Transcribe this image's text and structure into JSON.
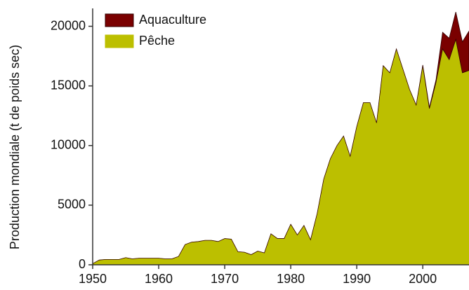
{
  "chart_data": {
    "type": "stacked_area",
    "y_label": "Production mondiale (t de poids sec)",
    "x": [
      1950,
      1951,
      1952,
      1953,
      1954,
      1955,
      1956,
      1957,
      1958,
      1959,
      1960,
      1961,
      1962,
      1963,
      1964,
      1965,
      1966,
      1967,
      1968,
      1969,
      1970,
      1971,
      1972,
      1973,
      1974,
      1975,
      1976,
      1977,
      1978,
      1979,
      1980,
      1981,
      1982,
      1983,
      1984,
      1985,
      1986,
      1987,
      1988,
      1989,
      1990,
      1991,
      1992,
      1993,
      1994,
      1995,
      1996,
      1997,
      1998,
      1999,
      2000,
      2001,
      2002,
      2003,
      2004,
      2005,
      2006,
      2007
    ],
    "series": [
      {
        "name": "Pêche",
        "color": "#bcbf00",
        "values": [
          100,
          400,
          450,
          450,
          450,
          600,
          500,
          550,
          550,
          550,
          550,
          500,
          500,
          700,
          1700,
          1900,
          1950,
          2050,
          2050,
          1950,
          2200,
          2150,
          1100,
          1050,
          850,
          1150,
          1000,
          2600,
          2200,
          2200,
          3400,
          2500,
          3300,
          2100,
          4300,
          7200,
          8900,
          10000,
          10800,
          9100,
          11600,
          13600,
          13600,
          11900,
          16700,
          16100,
          18100,
          16400,
          14700,
          13400,
          16700,
          13100,
          15300,
          18100,
          17200,
          18900,
          16100,
          16300
        ]
      },
      {
        "name": "Aquaculture",
        "color": "#7a0000",
        "values": [
          0,
          0,
          0,
          0,
          0,
          0,
          0,
          0,
          0,
          0,
          0,
          0,
          0,
          0,
          0,
          0,
          0,
          0,
          0,
          0,
          0,
          0,
          0,
          0,
          0,
          0,
          0,
          0,
          0,
          0,
          0,
          0,
          0,
          0,
          0,
          0,
          0,
          0,
          0,
          0,
          0,
          0,
          0,
          0,
          0,
          0,
          0,
          0,
          0,
          0,
          50,
          100,
          200,
          1400,
          1800,
          2300,
          2600,
          3300
        ]
      }
    ],
    "xlim": [
      1950,
      2007
    ],
    "ylim": [
      0,
      21500
    ],
    "xticks": [
      1950,
      1960,
      1970,
      1980,
      1990,
      2000
    ],
    "yticks": [
      0,
      5000,
      10000,
      15000,
      20000
    ]
  }
}
